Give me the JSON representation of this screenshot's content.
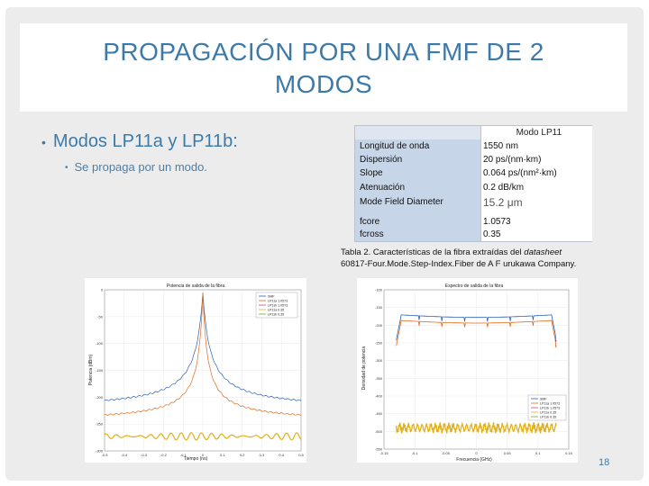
{
  "slide": {
    "title_line1": "PROPAGACIÓN POR UNA FMF DE 2",
    "title_line2": "MODOS",
    "bullet_main": "Modos LP11a y LP11b:",
    "bullet_sub": "Se propaga por un modo.",
    "page_number": "18"
  },
  "table": {
    "header": "Modo LP11",
    "rows": [
      {
        "label": "Longitud de onda",
        "value": "1550 nm"
      },
      {
        "label": "Dispersión",
        "value": "20 ps/(nm·km)"
      },
      {
        "label": "Slope",
        "value": "0.064 ps/(nm²·km)"
      },
      {
        "label": "Atenuación",
        "value": "0.2 dB/km"
      },
      {
        "label": "Mode Field Diameter",
        "value": "15.2 μm"
      },
      {
        "label": "fcore",
        "value": "1.0573"
      },
      {
        "label": "fcross",
        "value": "0.35"
      }
    ]
  },
  "caption": {
    "prefix": "Tabla 2.  Características de la fibra extraídas del ",
    "italic": "datasheet",
    "suffix": "60817-Four.Mode.Step-Index.Fiber de A F urukawa Company."
  },
  "chart_data": [
    {
      "type": "line",
      "title": "Potencia de salida de la fibra",
      "xlabel": "Tiempo (ns)",
      "ylabel": "Potencia (dBm)",
      "xlim": [
        -0.5,
        0.5
      ],
      "ylim": [
        -300,
        0
      ],
      "xticks": [
        "-0.5",
        "-0.4",
        "-0.3",
        "-0.2",
        "-0.1",
        "0",
        "0.1",
        "0.2",
        "0.3",
        "0.4",
        "0.5"
      ],
      "yticks": [
        "0",
        "-50",
        "-100",
        "-150",
        "-200",
        "-250",
        "-300"
      ],
      "legend": [
        "SMF",
        "LP11a 1.0573",
        "LP11b 1.0573",
        "LP11a 0.35",
        "LP11b 0.35"
      ],
      "series": [
        {
          "name": "SMF",
          "color": "#2b5fb4",
          "baseline": -225,
          "peak": -5
        },
        {
          "name": "LP11a 1.0573",
          "color": "#e06a1a",
          "baseline": -247,
          "peak": -5
        },
        {
          "name": "LP11b 0.35",
          "color": "#e0b11a",
          "baseline": -273,
          "peak": -270
        }
      ]
    },
    {
      "type": "line",
      "title": "Espectro de salida de la fibra",
      "xlabel": "Frecuencia (GHz)",
      "ylabel": "Densidad de potencia",
      "xlim": [
        -0.15,
        0.15
      ],
      "ylim": [
        -550,
        -100
      ],
      "xticks": [
        "-0.15",
        "-0.1",
        "-0.05",
        "0",
        "0.05",
        "0.1",
        "0.15"
      ],
      "yticks": [
        "-100",
        "-150",
        "-200",
        "-250",
        "-300",
        "-350",
        "-400",
        "-450",
        "-500",
        "-550"
      ],
      "legend": [
        "SMF",
        "LP11a 1.0573",
        "LP11b 1.0573",
        "LP11a 0.35",
        "LP11b 0.35"
      ],
      "series": [
        {
          "name": "SMF",
          "color": "#2b5fb4",
          "level": -170
        },
        {
          "name": "LP11a 1.0573",
          "color": "#e06a1a",
          "level": -180
        },
        {
          "name": "LP11b 0.35",
          "color": "#e0b11a",
          "level": -490
        }
      ]
    }
  ]
}
